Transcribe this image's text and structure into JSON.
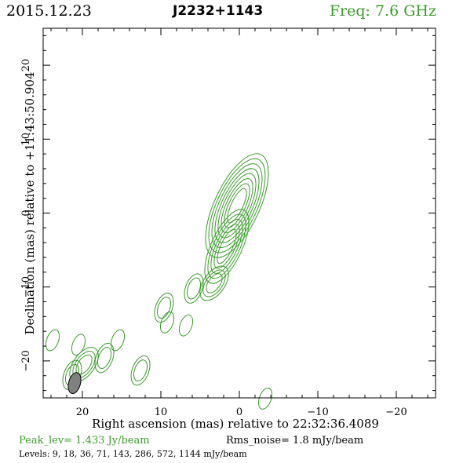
{
  "header": {
    "date": "2015.12.23",
    "source": "J2232+1143",
    "frequency": "Freq: 7.6 GHz"
  },
  "chart_data": {
    "type": "contour",
    "ylabel": "Declination (mas) relative to +11:43:50.904",
    "xlabel": "Right ascension (mas) relative to 22:32:36.4089",
    "xlim": [
      25,
      -25
    ],
    "ylim": [
      -25,
      25
    ],
    "xticks": [
      20,
      10,
      0,
      -10,
      -20
    ],
    "xtick_labels": [
      "20",
      "10",
      "0",
      "−10",
      "−20"
    ],
    "yticks": [
      20,
      10,
      0,
      -10,
      -20
    ],
    "ytick_labels": [
      "20",
      "10",
      "0",
      "−10",
      "−20"
    ],
    "contour_color": "#3a9a2a",
    "beam": {
      "x": 21,
      "y": -23,
      "major": 2.9,
      "minor": 1.1,
      "pa_deg": 15
    },
    "components": [
      {
        "x": 0.3,
        "y": 1.0,
        "n": 8
      },
      {
        "x": 1.6,
        "y": -4.5,
        "n": 5
      },
      {
        "x": 3.2,
        "y": -9.5,
        "n": 3
      },
      {
        "x": 5.8,
        "y": -10.2,
        "n": 2
      },
      {
        "x": 9.6,
        "y": -12.8,
        "n": 2
      },
      {
        "x": 9.2,
        "y": -14.8,
        "n": 1
      },
      {
        "x": 6.8,
        "y": -15.2,
        "n": 1
      },
      {
        "x": 12.6,
        "y": -21.3,
        "n": 2
      },
      {
        "x": 15.5,
        "y": -17.2,
        "n": 1
      },
      {
        "x": 17.2,
        "y": -19.6,
        "n": 2
      },
      {
        "x": 19.8,
        "y": -20.5,
        "n": 3
      },
      {
        "x": 21.3,
        "y": -21.9,
        "n": 2
      },
      {
        "x": 23.8,
        "y": -17.2,
        "n": 1
      },
      {
        "x": 20.5,
        "y": -17.8,
        "n": 1
      },
      {
        "x": -3.3,
        "y": -25.1,
        "n": 1
      }
    ]
  },
  "footer": {
    "peak": "Peak_lev=  1.433 Jy/beam",
    "rms": "Rms_noise=  1.8 mJy/beam",
    "levels": "Levels:   9,  18,  36,  71, 143, 286, 572, 1144 mJy/beam"
  }
}
